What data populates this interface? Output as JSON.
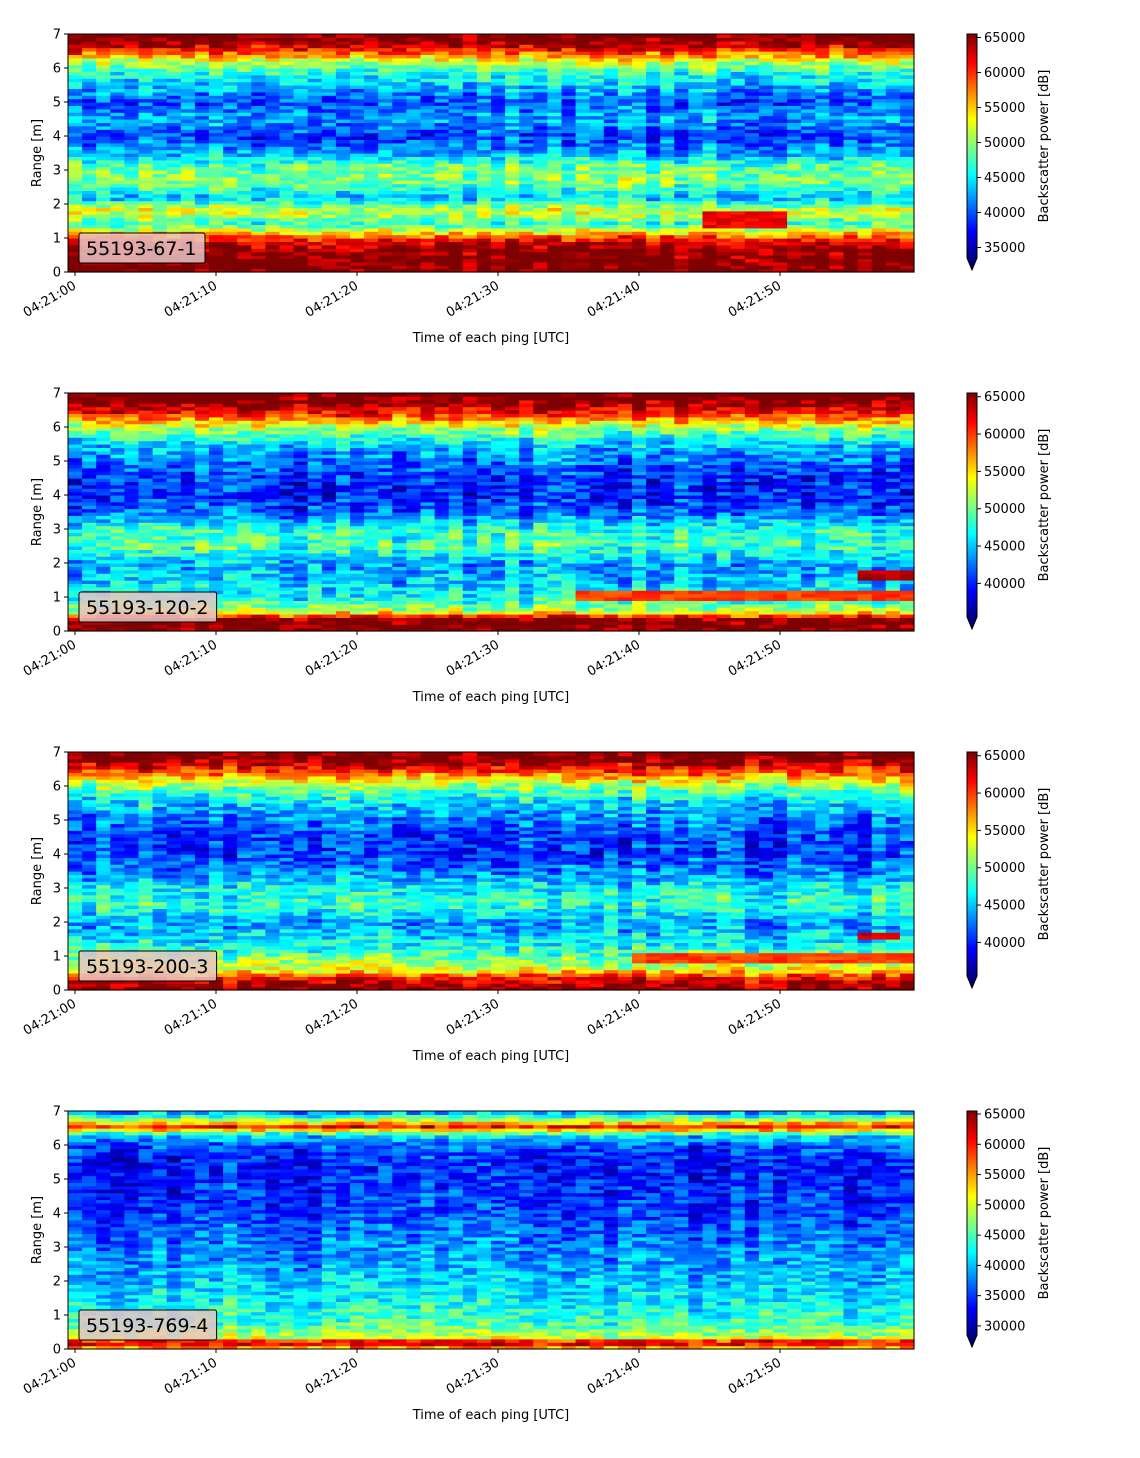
{
  "colormap": "jet",
  "colors": {
    "jet": [
      "#00007f",
      "#0000ff",
      "#007fff",
      "#00ffff",
      "#7fff7f",
      "#ffff00",
      "#ff7f00",
      "#ff0000",
      "#7f0000"
    ],
    "label_box_bg": "#e8c5c5"
  },
  "chart_data": [
    {
      "type": "heatmap",
      "label": "55193-67-1",
      "xlabel": "Time of each ping [UTC]",
      "ylabel": "Range [m]",
      "xticks": [
        "04:21:00",
        "04:21:10",
        "04:21:20",
        "04:21:30",
        "04:21:40",
        "04:21:50"
      ],
      "xlim_seconds": [
        0,
        60
      ],
      "ylim": [
        0,
        7
      ],
      "yticks": [
        0,
        1,
        2,
        3,
        4,
        5,
        6,
        7
      ],
      "colorbar": {
        "label": "Backscatter power [dB]",
        "ticks": [
          35000,
          40000,
          45000,
          50000,
          55000,
          60000,
          65000
        ],
        "vmin": 33500,
        "vmax": 65500,
        "extend": "min"
      },
      "profile": [
        {
          "range": 0.1,
          "value": 66000
        },
        {
          "range": 0.3,
          "value": 66000
        },
        {
          "range": 0.6,
          "value": 65500
        },
        {
          "range": 0.9,
          "value": 63000
        },
        {
          "range": 1.1,
          "value": 57000
        },
        {
          "range": 1.4,
          "value": 47000
        },
        {
          "range": 1.8,
          "value": 53000
        },
        {
          "range": 2.2,
          "value": 44000
        },
        {
          "range": 2.7,
          "value": 50000
        },
        {
          "range": 3.1,
          "value": 49000
        },
        {
          "range": 3.5,
          "value": 43000
        },
        {
          "range": 4.0,
          "value": 39500
        },
        {
          "range": 4.5,
          "value": 43000
        },
        {
          "range": 5.0,
          "value": 40000
        },
        {
          "range": 5.5,
          "value": 44000
        },
        {
          "range": 5.9,
          "value": 47000
        },
        {
          "range": 6.2,
          "value": 52000
        },
        {
          "range": 6.5,
          "value": 60000
        },
        {
          "range": 6.8,
          "value": 66000
        }
      ],
      "noise": 4000,
      "features": [
        {
          "t_start": 45,
          "t_end": 51,
          "r_start": 1.3,
          "r_end": 1.75,
          "value": 62000
        }
      ]
    },
    {
      "type": "heatmap",
      "label": "55193-120-2",
      "xlabel": "Time of each ping [UTC]",
      "ylabel": "Range [m]",
      "xticks": [
        "04:21:00",
        "04:21:10",
        "04:21:20",
        "04:21:30",
        "04:21:40",
        "04:21:50"
      ],
      "xlim_seconds": [
        0,
        60
      ],
      "ylim": [
        0,
        7
      ],
      "yticks": [
        0,
        1,
        2,
        3,
        4,
        5,
        6,
        7
      ],
      "colorbar": {
        "label": "Backscatter power [dB]",
        "ticks": [
          40000,
          45000,
          50000,
          55000,
          60000,
          65000
        ],
        "vmin": 35500,
        "vmax": 65500,
        "extend": "min"
      },
      "profile": [
        {
          "range": 0.1,
          "value": 66000
        },
        {
          "range": 0.35,
          "value": 65500
        },
        {
          "range": 0.6,
          "value": 52000
        },
        {
          "range": 1.0,
          "value": 47000
        },
        {
          "range": 1.5,
          "value": 45000
        },
        {
          "range": 2.0,
          "value": 44000
        },
        {
          "range": 2.5,
          "value": 49000
        },
        {
          "range": 3.0,
          "value": 48000
        },
        {
          "range": 3.5,
          "value": 42000
        },
        {
          "range": 4.0,
          "value": 40000
        },
        {
          "range": 4.5,
          "value": 40500
        },
        {
          "range": 5.0,
          "value": 42500
        },
        {
          "range": 5.5,
          "value": 45000
        },
        {
          "range": 6.0,
          "value": 52000
        },
        {
          "range": 6.4,
          "value": 61000
        },
        {
          "range": 6.8,
          "value": 66000
        }
      ],
      "noise": 4000,
      "features": [
        {
          "t_start": 36,
          "t_end": 60,
          "r_start": 0.9,
          "r_end": 1.15,
          "value": 60000
        },
        {
          "t_start": 56,
          "t_end": 60,
          "r_start": 1.5,
          "r_end": 1.75,
          "value": 64000
        }
      ]
    },
    {
      "type": "heatmap",
      "label": "55193-200-3",
      "xlabel": "Time of each ping [UTC]",
      "ylabel": "Range [m]",
      "xticks": [
        "04:21:00",
        "04:21:10",
        "04:21:20",
        "04:21:30",
        "04:21:40",
        "04:21:50"
      ],
      "xlim_seconds": [
        0,
        60
      ],
      "ylim": [
        0,
        7
      ],
      "yticks": [
        0,
        1,
        2,
        3,
        4,
        5,
        6,
        7
      ],
      "colorbar": {
        "label": "Backscatter power [dB]",
        "ticks": [
          40000,
          45000,
          50000,
          55000,
          60000,
          65000
        ],
        "vmin": 35500,
        "vmax": 65500,
        "extend": "min"
      },
      "profile": [
        {
          "range": 0.1,
          "value": 65500
        },
        {
          "range": 0.35,
          "value": 62000
        },
        {
          "range": 0.6,
          "value": 54000
        },
        {
          "range": 1.0,
          "value": 50000
        },
        {
          "range": 1.5,
          "value": 46000
        },
        {
          "range": 2.0,
          "value": 44000
        },
        {
          "range": 2.5,
          "value": 48500
        },
        {
          "range": 3.0,
          "value": 47000
        },
        {
          "range": 3.5,
          "value": 43000
        },
        {
          "range": 4.0,
          "value": 41000
        },
        {
          "range": 4.5,
          "value": 41000
        },
        {
          "range": 5.0,
          "value": 43000
        },
        {
          "range": 5.5,
          "value": 45500
        },
        {
          "range": 6.0,
          "value": 51000
        },
        {
          "range": 6.4,
          "value": 59000
        },
        {
          "range": 6.8,
          "value": 66000
        }
      ],
      "noise": 4000,
      "features": [
        {
          "t_start": 40,
          "t_end": 60,
          "r_start": 0.85,
          "r_end": 1.1,
          "value": 60000
        },
        {
          "t_start": 56,
          "t_end": 59,
          "r_start": 1.5,
          "r_end": 1.7,
          "value": 63000
        }
      ]
    },
    {
      "type": "heatmap",
      "label": "55193-769-4",
      "xlabel": "Time of each ping [UTC]",
      "ylabel": "Range [m]",
      "xticks": [
        "04:21:00",
        "04:21:10",
        "04:21:20",
        "04:21:30",
        "04:21:40",
        "04:21:50"
      ],
      "xlim_seconds": [
        0,
        60
      ],
      "ylim": [
        0,
        7
      ],
      "yticks": [
        0,
        1,
        2,
        3,
        4,
        5,
        6,
        7
      ],
      "colorbar": {
        "label": "Backscatter power [dB]",
        "ticks": [
          30000,
          35000,
          40000,
          45000,
          50000,
          55000,
          60000,
          65000
        ],
        "vmin": 28500,
        "vmax": 65500,
        "extend": "min"
      },
      "profile": [
        {
          "range": 0.05,
          "value": 55000
        },
        {
          "range": 0.2,
          "value": 64000
        },
        {
          "range": 0.35,
          "value": 50000
        },
        {
          "range": 0.7,
          "value": 45000
        },
        {
          "range": 1.2,
          "value": 43000
        },
        {
          "range": 1.8,
          "value": 41000
        },
        {
          "range": 2.5,
          "value": 39000
        },
        {
          "range": 3.2,
          "value": 37500
        },
        {
          "range": 4.0,
          "value": 35500
        },
        {
          "range": 4.8,
          "value": 34500
        },
        {
          "range": 5.5,
          "value": 34000
        },
        {
          "range": 6.0,
          "value": 36000
        },
        {
          "range": 6.3,
          "value": 42000
        },
        {
          "range": 6.55,
          "value": 60000
        },
        {
          "range": 6.8,
          "value": 46000
        },
        {
          "range": 6.95,
          "value": 40000
        }
      ],
      "noise": 4500,
      "features": []
    }
  ]
}
